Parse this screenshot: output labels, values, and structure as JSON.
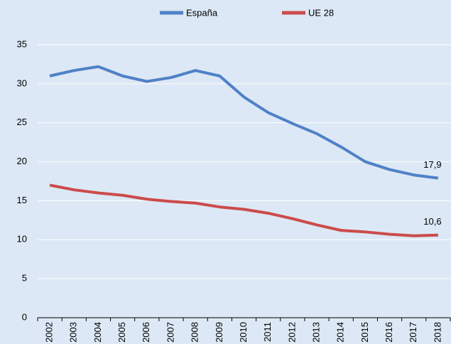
{
  "chart_data": {
    "type": "line",
    "categories": [
      "2002",
      "2003",
      "2004",
      "2005",
      "2006",
      "2007",
      "2008",
      "2009",
      "2010",
      "2011",
      "2012",
      "2013",
      "2014",
      "2015",
      "2016",
      "2017",
      "2018"
    ],
    "series": [
      {
        "name": "España",
        "color": "#4f81c7",
        "values": [
          31.0,
          31.7,
          32.2,
          31.0,
          30.3,
          30.8,
          31.7,
          31.0,
          28.3,
          26.3,
          24.9,
          23.6,
          21.9,
          20.0,
          19.0,
          18.3,
          17.9
        ],
        "value_labels": [
          null,
          null,
          null,
          null,
          null,
          null,
          null,
          null,
          null,
          null,
          null,
          null,
          null,
          null,
          null,
          null,
          "17,9"
        ]
      },
      {
        "name": "UE 28",
        "color": "#cc4b4b",
        "values": [
          17.0,
          16.4,
          16.0,
          15.7,
          15.2,
          14.9,
          14.7,
          14.2,
          13.9,
          13.4,
          12.7,
          11.9,
          11.2,
          11.0,
          10.7,
          10.5,
          10.6
        ],
        "value_labels": [
          null,
          null,
          null,
          null,
          null,
          null,
          null,
          null,
          null,
          null,
          null,
          null,
          null,
          null,
          null,
          null,
          "10,6"
        ]
      }
    ],
    "ylim": [
      0,
      35
    ],
    "yticks": [
      0,
      5,
      10,
      15,
      20,
      25,
      30,
      35
    ],
    "grid": true,
    "legend": "top"
  }
}
